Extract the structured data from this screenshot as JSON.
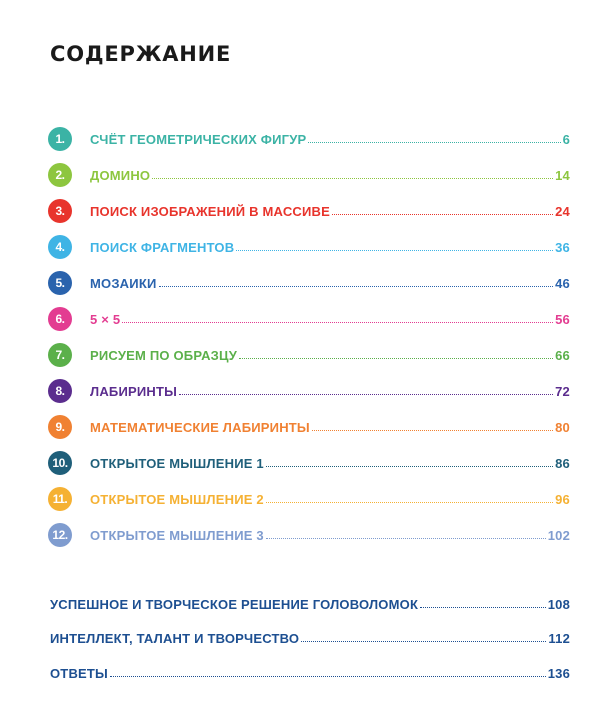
{
  "title": "СОДЕРЖАНИЕ",
  "chapters": [
    {
      "num": "1.",
      "title": "СЧЁТ ГЕОМЕТРИЧЕСКИХ ФИГУР ",
      "page": "6",
      "color": "#3bb3a5"
    },
    {
      "num": "2.",
      "title": "ДОМИНО ",
      "page": "14",
      "color": "#8dc63f"
    },
    {
      "num": "3.",
      "title": "ПОИСК ИЗОБРАЖЕНИЙ В МАССИВЕ",
      "page": "24",
      "color": "#e8342c"
    },
    {
      "num": "4.",
      "title": "ПОИСК ФРАГМЕНТОВ",
      "page": "36",
      "color": "#3fb4e5"
    },
    {
      "num": "5.",
      "title": "МОЗАИКИ",
      "page": "46",
      "color": "#2a63ad"
    },
    {
      "num": "6.",
      "title": "5 × 5 ",
      "page": "56",
      "color": "#e33c91"
    },
    {
      "num": "7.",
      "title": " РИСУЕМ ПО ОБРАЗЦУ ",
      "page": "66",
      "color": "#5bb04a"
    },
    {
      "num": "8.",
      "title": "ЛАБИРИНТЫ",
      "page": "72",
      "color": "#5b2d8e"
    },
    {
      "num": "9.",
      "title": "МАТЕМАТИЧЕСКИЕ ЛАБИРИНТЫ ",
      "page": "80",
      "color": "#f08132"
    },
    {
      "num": "10.",
      "title": "ОТКРЫТОЕ МЫШЛЕНИЕ 1 ",
      "page": "86",
      "color": "#1f5f7a"
    },
    {
      "num": "11.",
      "title": "ОТКРЫТОЕ МЫШЛЕНИЕ 2 ",
      "page": "96",
      "color": "#f5b133"
    },
    {
      "num": "12.",
      "title": "ОТКРЫТОЕ МЫШЛЕНИЕ 3 ",
      "page": "102",
      "color": "#7f9ccf"
    }
  ],
  "extra": [
    {
      "title": "УСПЕШНОЕ И ТВОРЧЕСКОЕ РЕШЕНИЕ ГОЛОВОЛОМОК ",
      "page": "108"
    },
    {
      "title": "ИНТЕЛЛЕКТ, ТАЛАНТ И ТВОРЧЕСТВО ",
      "page": "112"
    },
    {
      "title": "ОТВЕТЫ",
      "page": "136"
    }
  ]
}
